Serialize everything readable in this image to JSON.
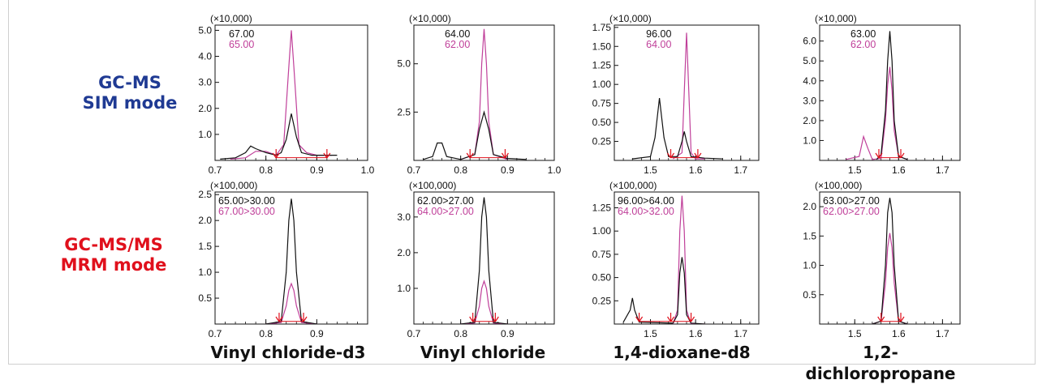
{
  "modes": {
    "sim": {
      "line1": "GC-MS",
      "line2": "SIM mode"
    },
    "mrm": {
      "line1": "GC-MS/MS",
      "line2": "MRM mode"
    }
  },
  "compounds": [
    "Vinyl chloride-d3",
    "Vinyl chloride",
    "1,4-dioxane-d8",
    "1,2-dichloropropane"
  ],
  "colors": {
    "black": "#111111",
    "magenta": "#c0409a",
    "marker": "#e0101c",
    "sim_label": "#1f3a93",
    "mrm_label": "#e0101c"
  },
  "chart_data": [
    {
      "type": "line",
      "mode": "SIM",
      "compound": "Vinyl chloride-d3",
      "scale_label": "(×10,000)",
      "xlim": [
        0.7,
        1.0
      ],
      "ylim": [
        0,
        5.2
      ],
      "xticks": [
        0.7,
        0.8,
        0.9,
        1.0
      ],
      "xtick_labels": [
        "0.7",
        "0.8",
        "0.9",
        "1.0"
      ],
      "yticks": [
        1,
        2,
        3,
        4,
        5
      ],
      "ytick_labels": [
        "1.0",
        "2.0",
        "3.0",
        "4.0",
        "5.0"
      ],
      "series": [
        {
          "name": "67.00",
          "color": "black",
          "x": [
            0.71,
            0.74,
            0.76,
            0.77,
            0.78,
            0.8,
            0.82,
            0.83,
            0.84,
            0.85,
            0.86,
            0.87,
            0.89,
            0.92,
            0.94
          ],
          "y": [
            0.05,
            0.1,
            0.3,
            0.55,
            0.45,
            0.3,
            0.2,
            0.3,
            0.8,
            1.8,
            0.9,
            0.3,
            0.2,
            0.2,
            0.2
          ]
        },
        {
          "name": "65.00",
          "color": "magenta",
          "x": [
            0.73,
            0.76,
            0.78,
            0.8,
            0.82,
            0.835,
            0.845,
            0.85,
            0.855,
            0.865,
            0.88,
            0.9,
            0.93
          ],
          "y": [
            0.05,
            0.1,
            0.35,
            0.35,
            0.2,
            0.6,
            3.6,
            5.0,
            3.6,
            0.6,
            0.3,
            0.2,
            0.2
          ]
        }
      ],
      "markers": [
        0.82,
        0.92
      ]
    },
    {
      "type": "line",
      "mode": "SIM",
      "compound": "Vinyl chloride",
      "scale_label": "(×10,000)",
      "xlim": [
        0.7,
        1.0
      ],
      "ylim": [
        0,
        7.0
      ],
      "xticks": [
        0.7,
        0.8,
        0.9,
        1.0
      ],
      "xtick_labels": [
        "0.7",
        "0.8",
        "0.9",
        "1.0"
      ],
      "yticks": [
        2.5,
        5.0
      ],
      "ytick_labels": [
        "2.5",
        "5.0"
      ],
      "series": [
        {
          "name": "64.00",
          "color": "black",
          "x": [
            0.72,
            0.74,
            0.75,
            0.76,
            0.77,
            0.8,
            0.83,
            0.84,
            0.85,
            0.86,
            0.87,
            0.9,
            0.94
          ],
          "y": [
            0.05,
            0.2,
            0.9,
            0.9,
            0.2,
            0.05,
            0.3,
            1.6,
            2.5,
            1.6,
            0.3,
            0.1,
            0.05
          ]
        },
        {
          "name": "62.00",
          "color": "magenta",
          "x": [
            0.8,
            0.83,
            0.84,
            0.845,
            0.85,
            0.855,
            0.86,
            0.87,
            0.9
          ],
          "y": [
            0.05,
            0.3,
            2.0,
            5.0,
            6.8,
            5.0,
            2.0,
            0.3,
            0.05
          ]
        }
      ],
      "markers": [
        0.82,
        0.895
      ]
    },
    {
      "type": "line",
      "mode": "SIM",
      "compound": "1,4-dioxane-d8",
      "scale_label": "(×10,000)",
      "xlim": [
        1.42,
        1.74
      ],
      "ylim": [
        0,
        1.78
      ],
      "xticks": [
        1.5,
        1.6,
        1.7
      ],
      "xtick_labels": [
        "1.5",
        "1.6",
        "1.7"
      ],
      "yticks": [
        0.25,
        0.5,
        0.75,
        1.0,
        1.25,
        1.5,
        1.75
      ],
      "ytick_labels": [
        "0.25",
        "0.50",
        "0.75",
        "1.00",
        "1.25",
        "1.50",
        "1.75"
      ],
      "series": [
        {
          "name": "96.00",
          "color": "black",
          "x": [
            1.46,
            1.5,
            1.51,
            1.52,
            1.53,
            1.54,
            1.56,
            1.57,
            1.575,
            1.58,
            1.59,
            1.62,
            1.66
          ],
          "y": [
            0.02,
            0.05,
            0.3,
            0.82,
            0.3,
            0.05,
            0.05,
            0.25,
            0.38,
            0.25,
            0.05,
            0.03,
            0.02
          ]
        },
        {
          "name": "64.00",
          "color": "magenta",
          "x": [
            1.55,
            1.57,
            1.575,
            1.58,
            1.585,
            1.59,
            1.6,
            1.62
          ],
          "y": [
            0.02,
            0.1,
            0.9,
            1.68,
            0.9,
            0.1,
            0.02,
            0.02
          ]
        }
      ],
      "markers": [
        1.545,
        1.605
      ]
    },
    {
      "type": "line",
      "mode": "SIM",
      "compound": "1,2-dichloropropane",
      "scale_label": "(×10,000)",
      "xlim": [
        1.42,
        1.74
      ],
      "ylim": [
        0,
        6.8
      ],
      "xticks": [
        1.5,
        1.6,
        1.7
      ],
      "xtick_labels": [
        "1.5",
        "1.6",
        "1.7"
      ],
      "yticks": [
        1,
        2,
        3,
        4,
        5,
        6
      ],
      "ytick_labels": [
        "1.0",
        "2.0",
        "3.0",
        "4.0",
        "5.0",
        "6.0"
      ],
      "series": [
        {
          "name": "63.00",
          "color": "black",
          "x": [
            1.55,
            1.56,
            1.57,
            1.575,
            1.58,
            1.585,
            1.59,
            1.6,
            1.62
          ],
          "y": [
            0.05,
            0.3,
            2.5,
            5.0,
            6.5,
            5.0,
            2.0,
            0.2,
            0.05
          ]
        },
        {
          "name": "62.00",
          "color": "magenta",
          "x": [
            1.48,
            1.51,
            1.52,
            1.53,
            1.54,
            1.56,
            1.57,
            1.575,
            1.58,
            1.585,
            1.59,
            1.6,
            1.62
          ],
          "y": [
            0.05,
            0.2,
            1.2,
            0.6,
            0.05,
            0.1,
            2.0,
            3.8,
            4.7,
            3.5,
            1.5,
            0.2,
            0.05
          ]
        }
      ],
      "markers": [
        1.555,
        1.605
      ]
    },
    {
      "type": "line",
      "mode": "MRM",
      "compound": "Vinyl chloride-d3",
      "scale_label": "(×100,000)",
      "xlim": [
        0.7,
        1.0
      ],
      "ylim": [
        0,
        2.55
      ],
      "xticks": [
        0.7,
        0.8,
        0.9
      ],
      "xtick_labels": [
        "0.7",
        "0.8",
        "0.9"
      ],
      "yticks": [
        0.5,
        1.0,
        1.5,
        2.0,
        2.5
      ],
      "ytick_labels": [
        "0.5",
        "1.0",
        "1.5",
        "2.0",
        "2.5"
      ],
      "series": [
        {
          "name": "65.00>30.00",
          "color": "black",
          "x": [
            0.8,
            0.83,
            0.84,
            0.845,
            0.85,
            0.855,
            0.86,
            0.87,
            0.9
          ],
          "y": [
            0.0,
            0.05,
            1.0,
            2.0,
            2.42,
            2.0,
            1.0,
            0.05,
            0.0
          ]
        },
        {
          "name": "67.00>30.00",
          "color": "magenta",
          "x": [
            0.8,
            0.83,
            0.84,
            0.845,
            0.85,
            0.855,
            0.86,
            0.87,
            0.9
          ],
          "y": [
            0.0,
            0.03,
            0.35,
            0.65,
            0.78,
            0.65,
            0.35,
            0.03,
            0.0
          ]
        }
      ],
      "markers": [
        0.826,
        0.874
      ]
    },
    {
      "type": "line",
      "mode": "MRM",
      "compound": "Vinyl chloride",
      "scale_label": "(×100,000)",
      "xlim": [
        0.7,
        1.0
      ],
      "ylim": [
        0,
        3.7
      ],
      "xticks": [
        0.7,
        0.8,
        0.9
      ],
      "xtick_labels": [
        "0.7",
        "0.8",
        "0.9"
      ],
      "yticks": [
        1,
        2,
        3
      ],
      "ytick_labels": [
        "1.0",
        "2.0",
        "3.0"
      ],
      "series": [
        {
          "name": "62.00>27.00",
          "color": "black",
          "x": [
            0.8,
            0.83,
            0.84,
            0.845,
            0.85,
            0.855,
            0.86,
            0.87,
            0.9
          ],
          "y": [
            0.0,
            0.05,
            1.5,
            3.0,
            3.55,
            3.0,
            1.5,
            0.05,
            0.0
          ]
        },
        {
          "name": "64.00>27.00",
          "color": "magenta",
          "x": [
            0.8,
            0.83,
            0.84,
            0.845,
            0.85,
            0.855,
            0.86,
            0.87,
            0.9
          ],
          "y": [
            0.0,
            0.03,
            0.5,
            1.0,
            1.2,
            1.0,
            0.5,
            0.03,
            0.0
          ]
        }
      ],
      "markers": [
        0.826,
        0.874
      ]
    },
    {
      "type": "line",
      "mode": "MRM",
      "compound": "1,4-dioxane-d8",
      "scale_label": "(×100,000)",
      "xlim": [
        1.42,
        1.74
      ],
      "ylim": [
        0,
        1.42
      ],
      "xticks": [
        1.5,
        1.6,
        1.7
      ],
      "xtick_labels": [
        "1.5",
        "1.6",
        "1.7"
      ],
      "yticks": [
        0.25,
        0.5,
        0.75,
        1.0,
        1.25
      ],
      "ytick_labels": [
        "0.25",
        "0.50",
        "0.75",
        "1.00",
        "1.25"
      ],
      "series": [
        {
          "name": "96.00>64.00",
          "color": "black",
          "x": [
            1.44,
            1.455,
            1.46,
            1.465,
            1.475,
            1.55,
            1.56,
            1.565,
            1.57,
            1.575,
            1.58,
            1.59,
            1.62
          ],
          "y": [
            0.02,
            0.15,
            0.28,
            0.15,
            0.02,
            0.01,
            0.1,
            0.55,
            0.72,
            0.55,
            0.1,
            0.01,
            0.0
          ]
        },
        {
          "name": "64.00>32.00",
          "color": "magenta",
          "x": [
            1.55,
            1.56,
            1.565,
            1.57,
            1.575,
            1.58,
            1.59,
            1.62
          ],
          "y": [
            0.0,
            0.15,
            1.0,
            1.38,
            1.0,
            0.15,
            0.0,
            0.0
          ]
        }
      ],
      "markers": [
        1.475,
        1.545,
        1.59
      ]
    },
    {
      "type": "line",
      "mode": "MRM",
      "compound": "1,2-dichloropropane",
      "scale_label": "(×100,000)",
      "xlim": [
        1.42,
        1.74
      ],
      "ylim": [
        0,
        2.25
      ],
      "xticks": [
        1.5,
        1.6,
        1.7
      ],
      "xtick_labels": [
        "1.5",
        "1.6",
        "1.7"
      ],
      "yticks": [
        0.5,
        1.0,
        1.5,
        2.0
      ],
      "ytick_labels": [
        "0.5",
        "1.0",
        "1.5",
        "2.0"
      ],
      "series": [
        {
          "name": "63.00>27.00",
          "color": "black",
          "x": [
            1.54,
            1.56,
            1.57,
            1.575,
            1.58,
            1.585,
            1.59,
            1.6,
            1.62
          ],
          "y": [
            0.0,
            0.05,
            1.0,
            1.9,
            2.15,
            1.9,
            1.0,
            0.05,
            0.0
          ]
        },
        {
          "name": "62.00>27.00",
          "color": "magenta",
          "x": [
            1.54,
            1.56,
            1.57,
            1.575,
            1.58,
            1.585,
            1.59,
            1.6,
            1.62
          ],
          "y": [
            0.0,
            0.05,
            0.7,
            1.3,
            1.55,
            1.3,
            0.7,
            0.05,
            0.0
          ]
        }
      ],
      "markers": [
        1.56,
        1.605
      ]
    }
  ]
}
